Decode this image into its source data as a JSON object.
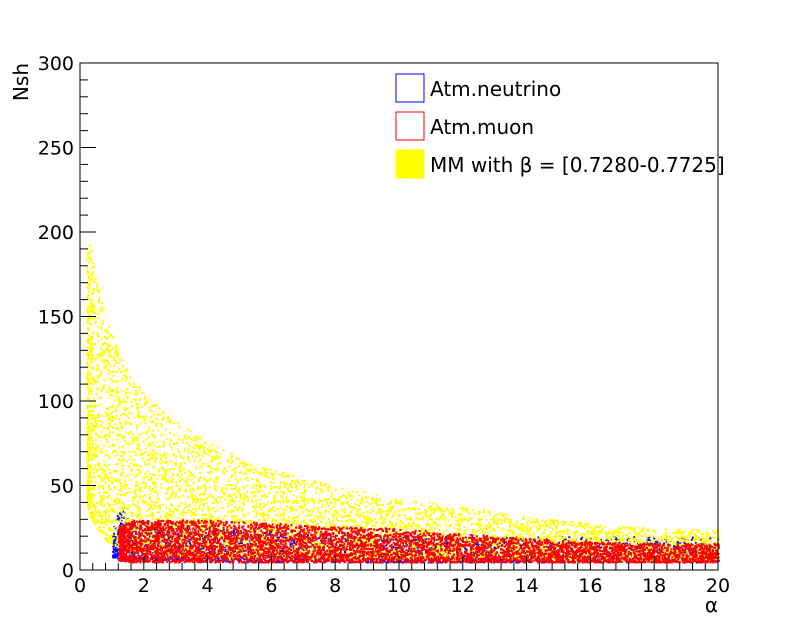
{
  "chart_data": {
    "type": "scatter",
    "title": "",
    "xlabel": "α",
    "ylabel": "Nsh",
    "xlim": [
      0,
      20
    ],
    "ylim": [
      0,
      300
    ],
    "x_ticks": [
      "0",
      "2",
      "4",
      "6",
      "8",
      "10",
      "12",
      "14",
      "16",
      "18",
      "20"
    ],
    "y_ticks": [
      "0",
      "50",
      "100",
      "150",
      "200",
      "250",
      "300"
    ],
    "grid": false,
    "legend_position": "top-right",
    "series": [
      {
        "name": "Atm.neutrino",
        "color": "#0000ff",
        "fill": "#ffffff",
        "band": [
          [
            1.0,
            8,
            28
          ],
          [
            1.2,
            7,
            38
          ],
          [
            1.5,
            6,
            32
          ],
          [
            2.0,
            6,
            28
          ],
          [
            3.0,
            6,
            26
          ],
          [
            5.0,
            5,
            24
          ],
          [
            8.0,
            5,
            22
          ],
          [
            12.0,
            5,
            20
          ],
          [
            16.0,
            5,
            20
          ],
          [
            20.0,
            5,
            20
          ]
        ]
      },
      {
        "name": "Atm.muon",
        "color": "#ff0000",
        "fill": "#ffffff",
        "band": [
          [
            1.2,
            6,
            26
          ],
          [
            1.6,
            5,
            30
          ],
          [
            2.5,
            5,
            30
          ],
          [
            4.0,
            5,
            30
          ],
          [
            6.0,
            5,
            28
          ],
          [
            8.0,
            5,
            26
          ],
          [
            10.0,
            5,
            25
          ],
          [
            12.0,
            5,
            22
          ],
          [
            14.0,
            5,
            19
          ],
          [
            16.0,
            5,
            17
          ],
          [
            18.0,
            5,
            16
          ],
          [
            20.0,
            5,
            16
          ]
        ]
      },
      {
        "name": "MM with β = [0.7280-0.7725]",
        "color": "#ffff00",
        "fill": "#ffff00",
        "band": [
          [
            0.2,
            40,
            190
          ],
          [
            0.3,
            32,
            193
          ],
          [
            0.5,
            25,
            175
          ],
          [
            0.8,
            18,
            150
          ],
          [
            1.0,
            15,
            140
          ],
          [
            1.5,
            12,
            118
          ],
          [
            2.0,
            10,
            105
          ],
          [
            3.0,
            9,
            88
          ],
          [
            4.0,
            8,
            76
          ],
          [
            5.0,
            8,
            67
          ],
          [
            6.0,
            8,
            60
          ],
          [
            8.0,
            7,
            50
          ],
          [
            10.0,
            7,
            43
          ],
          [
            12.0,
            7,
            38
          ],
          [
            14.0,
            7,
            32
          ],
          [
            16.0,
            6,
            28
          ],
          [
            18.0,
            6,
            25
          ],
          [
            20.0,
            6,
            24
          ]
        ]
      }
    ]
  }
}
